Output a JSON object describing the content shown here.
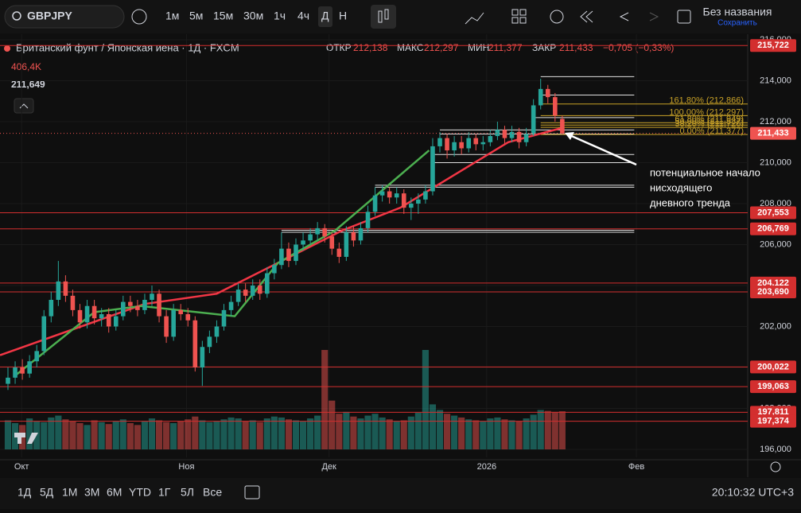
{
  "ui": {
    "symbol": "GBPJPY",
    "intervals": [
      "1м",
      "5м",
      "15м",
      "30м",
      "1ч",
      "4ч",
      "Д",
      "Н"
    ],
    "layout_name": "Без названия",
    "save": "Сохранить",
    "ranges": [
      "1Д",
      "5Д",
      "1М",
      "3М",
      "6М",
      "YTD",
      "1Г",
      "5Л",
      "Все"
    ],
    "clock": "20:10:32 UTC+3"
  },
  "chart_data": {
    "type": "candlestick",
    "title": "Британский фунт / Японская иена · 1Д · FXCM",
    "ohlc_labels": [
      {
        "name": "ОТКР",
        "value": 212.138,
        "label": "212,138"
      },
      {
        "name": "МАКС",
        "value": 212.297,
        "label": "212,297"
      },
      {
        "name": "МИН",
        "value": 211.377,
        "label": "211,377"
      },
      {
        "name": "ЗАКР",
        "value": 211.433,
        "label": "211,433"
      }
    ],
    "change": "−0,705 (−0,33%)",
    "volume_label": "406,4K",
    "price_label": "211,649",
    "up_color": "#26a69a",
    "down_color": "#ef5350",
    "xlim": [
      -1.105,
      102.76
    ],
    "ylim": [
      195.61,
      216.39
    ],
    "xticks": [
      {
        "value": 1.9,
        "label": "Окт"
      },
      {
        "value": 24.8,
        "label": "Ноя"
      },
      {
        "value": 44.6,
        "label": "Дек"
      },
      {
        "value": 66.5,
        "label": "2026"
      },
      {
        "value": 87.3,
        "label": "Фев"
      }
    ],
    "yticks": [
      {
        "value": 196,
        "label": "196,000"
      },
      {
        "value": 198,
        "label": "198,000"
      },
      {
        "value": 200,
        "label": "200,000"
      },
      {
        "value": 202,
        "label": "202,000"
      },
      {
        "value": 204,
        "label": "204,000"
      },
      {
        "value": 206,
        "label": "206,000"
      },
      {
        "value": 208,
        "label": "208,000"
      },
      {
        "value": 210,
        "label": "210,000"
      },
      {
        "value": 212,
        "label": "212,000"
      },
      {
        "value": 214,
        "label": "214,000"
      },
      {
        "value": 216,
        "label": "216,000"
      }
    ],
    "grid": true,
    "open": [
      199.2,
      199.5,
      200.0,
      199.7,
      200.3,
      200.8,
      202.5,
      203.3,
      204.2,
      203.5,
      202.8,
      202.2,
      203.0,
      202.4,
      202.6,
      202.0,
      202.5,
      203.2,
      203.0,
      202.8,
      203.3,
      203.6,
      202.5,
      201.5,
      202.8,
      202.6,
      202.3,
      200.0,
      201.0,
      201.5,
      202.0,
      202.8,
      203.2,
      203.8,
      203.5,
      204.0,
      203.6,
      204.6,
      205.0,
      205.8,
      205.2,
      206.0,
      206.2,
      206.5,
      206.8,
      206.4,
      205.8,
      205.4,
      206.6,
      206.2,
      206.8,
      207.6,
      208.4,
      208.6,
      208.3,
      208.5,
      207.8,
      208.0,
      208.2,
      208.6,
      210.8,
      211.2,
      210.6,
      211.0,
      210.7,
      211.2,
      210.9,
      211.0,
      211.3,
      211.6,
      211.2,
      211.5,
      211.0,
      211.4,
      212.8,
      213.6,
      213.2,
      212.138
    ],
    "high": [
      200.0,
      200.3,
      200.4,
      200.6,
      201.1,
      202.8,
      203.7,
      205.2,
      204.5,
      203.8,
      203.1,
      203.3,
      203.3,
      202.9,
      202.9,
      202.8,
      203.5,
      203.5,
      203.3,
      203.6,
      204.0,
      203.8,
      202.8,
      203.1,
      203.1,
      202.9,
      202.5,
      201.3,
      201.8,
      202.3,
      203.1,
      203.5,
      204.1,
      204.1,
      204.3,
      204.3,
      204.9,
      205.3,
      206.6,
      206.1,
      206.3,
      206.6,
      206.8,
      207.1,
      207.0,
      206.6,
      206.1,
      206.9,
      206.9,
      207.1,
      207.9,
      208.8,
      208.9,
      208.8,
      208.8,
      208.7,
      208.3,
      208.5,
      208.9,
      211.2,
      211.5,
      211.4,
      211.3,
      211.3,
      211.5,
      211.4,
      211.3,
      211.6,
      212.0,
      211.8,
      211.8,
      211.7,
      211.7,
      213.1,
      214.1,
      213.8,
      213.4,
      212.297
    ],
    "low": [
      198.9,
      199.2,
      199.4,
      199.5,
      200.0,
      200.6,
      202.2,
      203.0,
      203.2,
      202.5,
      201.9,
      201.9,
      202.1,
      202.0,
      201.7,
      201.8,
      202.3,
      202.7,
      202.5,
      202.6,
      203.0,
      202.2,
      201.2,
      201.3,
      202.3,
      202.0,
      199.8,
      199.1,
      200.7,
      201.2,
      201.8,
      202.5,
      203.0,
      203.2,
      203.3,
      203.3,
      203.4,
      204.3,
      204.8,
      204.9,
      205.0,
      205.7,
      206.0,
      206.2,
      206.1,
      205.5,
      205.1,
      205.2,
      205.9,
      206.0,
      206.6,
      207.4,
      208.1,
      208.0,
      208.0,
      207.5,
      207.2,
      207.5,
      208.0,
      208.4,
      210.5,
      210.2,
      210.3,
      210.4,
      210.5,
      210.6,
      210.6,
      210.8,
      211.1,
      210.9,
      211.0,
      210.7,
      210.8,
      211.3,
      212.6,
      212.9,
      212.0,
      211.377
    ],
    "close": [
      199.5,
      200.0,
      199.7,
      200.3,
      200.8,
      202.5,
      203.3,
      204.2,
      203.5,
      202.8,
      202.2,
      203.0,
      202.4,
      202.6,
      202.0,
      202.5,
      203.2,
      203.0,
      202.8,
      203.3,
      203.6,
      202.5,
      201.5,
      202.8,
      202.6,
      202.3,
      200.0,
      201.0,
      201.5,
      202.0,
      202.8,
      203.2,
      203.8,
      203.5,
      204.0,
      203.6,
      204.6,
      205.0,
      205.8,
      205.2,
      206.0,
      206.2,
      206.5,
      206.8,
      206.4,
      205.8,
      205.4,
      206.6,
      206.2,
      206.8,
      207.6,
      208.4,
      208.6,
      208.3,
      208.5,
      207.8,
      208.0,
      208.2,
      208.6,
      210.8,
      211.2,
      210.6,
      211.0,
      210.7,
      211.2,
      210.9,
      211.0,
      211.3,
      211.6,
      211.2,
      211.5,
      211.0,
      211.4,
      212.8,
      213.6,
      213.2,
      212.3,
      211.433
    ],
    "volume": [
      310,
      280,
      260,
      330,
      300,
      290,
      340,
      360,
      320,
      300,
      280,
      260,
      310,
      290,
      270,
      300,
      320,
      280,
      260,
      300,
      330,
      310,
      290,
      280,
      300,
      320,
      350,
      310,
      290,
      300,
      320,
      340,
      330,
      300,
      310,
      290,
      330,
      350,
      340,
      320,
      310,
      300,
      330,
      360,
      1060,
      520,
      380,
      400,
      350,
      330,
      360,
      380,
      340,
      320,
      300,
      310,
      350,
      390,
      1060,
      480,
      420,
      380,
      360,
      340,
      320,
      310,
      300,
      330,
      340,
      320,
      310,
      300,
      330,
      370,
      420,
      410,
      400,
      406.4
    ],
    "lines": [
      {
        "color": "#f23645",
        "x": [
          -1.1,
          19,
          29,
          46.5,
          54.5,
          69.5,
          77
        ],
        "values": [
          200.6,
          203.1,
          203.6,
          206.7,
          207.8,
          211.0,
          211.7
        ]
      },
      {
        "color": "#4caf50",
        "x": [
          1,
          12,
          18.5,
          31.5,
          37.5,
          45.5,
          58.5
        ],
        "values": [
          199.6,
          202.7,
          203.0,
          202.5,
          205.1,
          206.7,
          210.6
        ]
      }
    ],
    "current_price": {
      "value": 211.433,
      "label": "211,433"
    },
    "levels": [
      {
        "value": 215.722,
        "label": "215,722"
      },
      {
        "value": 207.553,
        "label": "207,553"
      },
      {
        "value": 206.769,
        "label": "206,769"
      },
      {
        "value": 204.122,
        "label": "204,122"
      },
      {
        "value": 203.69,
        "label": "203,690"
      },
      {
        "value": 200.022,
        "label": "200,022"
      },
      {
        "value": 199.063,
        "label": "199,063"
      },
      {
        "value": 197.811,
        "label": "197,811"
      },
      {
        "value": 197.374,
        "label": "197,374"
      }
    ],
    "zones": [
      {
        "value": 214.2,
        "from": 74,
        "to": 87
      },
      {
        "value": 213.3,
        "from": 74,
        "to": 87
      },
      {
        "value": 212.2,
        "from": 73,
        "to": 87
      },
      {
        "value": 211.6,
        "from": 60,
        "to": 87
      },
      {
        "value": 211.4,
        "from": 60,
        "to": 87
      },
      {
        "value": 210.4,
        "from": 59,
        "to": 87
      },
      {
        "value": 210.0,
        "from": 59,
        "to": 87
      },
      {
        "value": 208.9,
        "from": 51,
        "to": 87
      },
      {
        "value": 208.8,
        "from": 51,
        "to": 87
      },
      {
        "value": 206.7,
        "from": 38,
        "to": 87
      },
      {
        "value": 206.6,
        "from": 38,
        "to": 87
      }
    ],
    "fib": [
      {
        "value": 212.866,
        "label": "161,80% (212,866)"
      },
      {
        "value": 212.297,
        "label": "100,00% (212,297)"
      },
      {
        "value": 211.949,
        "label": "61,80% (211,949)"
      },
      {
        "value": 211.837,
        "label": "50,00% (211,837)"
      },
      {
        "value": 211.726,
        "label": "38,20% (211,726)"
      },
      {
        "value": 211.377,
        "label": "0,00% (211,377)"
      }
    ],
    "annotation": [
      "потенциальное начало",
      "нисходящего",
      "дневного тренда"
    ]
  }
}
